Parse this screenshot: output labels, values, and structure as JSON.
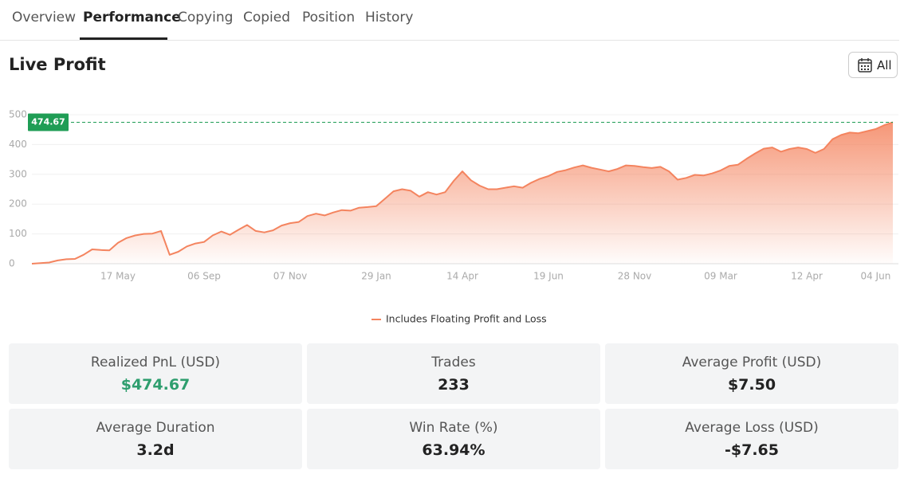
{
  "tabs": [
    "Overview",
    "Performance",
    "Copying",
    "Copied",
    "Position",
    "History"
  ],
  "title": "Live Profit",
  "range_button": "All",
  "chart_data": {
    "type": "area",
    "categories": [
      null,
      null,
      null,
      null,
      null,
      null,
      null,
      null,
      null,
      null,
      "17 May",
      null,
      null,
      null,
      null,
      null,
      null,
      null,
      null,
      null,
      "06 Sep",
      null,
      null,
      null,
      null,
      null,
      null,
      null,
      null,
      null,
      "07 Nov",
      null,
      null,
      null,
      null,
      null,
      null,
      null,
      null,
      null,
      "29 Jan",
      null,
      null,
      null,
      null,
      null,
      null,
      null,
      null,
      null,
      "14 Apr",
      null,
      null,
      null,
      null,
      null,
      null,
      null,
      null,
      null,
      "19 Jun",
      null,
      null,
      null,
      null,
      null,
      null,
      null,
      null,
      null,
      "28 Nov",
      null,
      null,
      null,
      null,
      null,
      null,
      null,
      null,
      null,
      "09 Mar",
      null,
      null,
      null,
      null,
      null,
      null,
      null,
      null,
      null,
      "12 Apr",
      null,
      null,
      null,
      null,
      null,
      null,
      null,
      "04 Jun",
      null,
      null
    ],
    "series": [
      {
        "name": "Includes Floating Profit and Loss",
        "color": "#f4845f",
        "values": [
          0,
          2,
          4,
          11,
          15,
          16,
          30,
          48,
          46,
          45,
          70,
          86,
          95,
          100,
          101,
          110,
          30,
          40,
          58,
          68,
          73,
          95,
          108,
          97,
          114,
          130,
          110,
          105,
          112,
          128,
          136,
          140,
          160,
          168,
          162,
          172,
          180,
          178,
          188,
          190,
          193,
          218,
          243,
          250,
          245,
          225,
          240,
          232,
          240,
          278,
          310,
          280,
          262,
          250,
          250,
          255,
          260,
          255,
          272,
          285,
          294,
          308,
          314,
          323,
          330,
          322,
          316,
          310,
          318,
          330,
          328,
          324,
          321,
          325,
          310,
          282,
          288,
          298,
          296,
          303,
          313,
          328,
          332,
          352,
          370,
          386,
          390,
          376,
          385,
          390,
          385,
          372,
          385,
          418,
          432,
          440,
          438,
          445,
          452,
          465,
          474.67
        ]
      }
    ],
    "ylim": [
      0,
      500
    ],
    "yticks": [
      0,
      100,
      200,
      300,
      400,
      500
    ],
    "grid": true,
    "legend": "bottom"
  },
  "stats": [
    {
      "label": "Realized PnL (USD)",
      "value": "$474.67"
    },
    {
      "label": "Trades",
      "value": "233"
    },
    {
      "label": "Average Profit (USD)",
      "value": "$7.50"
    },
    {
      "label": "Average Duration",
      "value": "3.2d"
    },
    {
      "label": "Win Rate (%)",
      "value": "63.94%"
    },
    {
      "label": "Average Loss (USD)",
      "value": "-$7.65"
    }
  ]
}
